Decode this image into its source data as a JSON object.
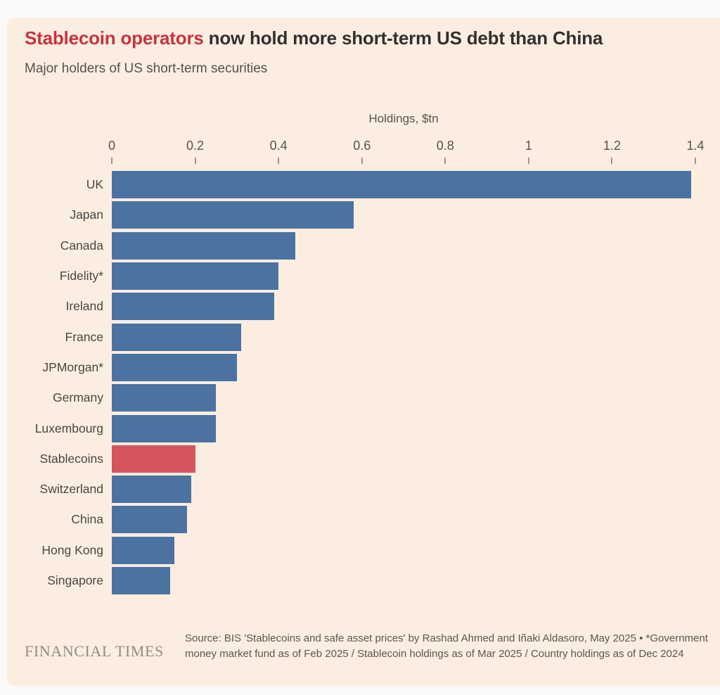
{
  "header": {
    "title_highlight": "Stablecoin operators",
    "title_rest": " now hold more short-term US debt than China",
    "subtitle": "Major holders of US short-term securities"
  },
  "chart_data": {
    "type": "bar",
    "orientation": "horizontal",
    "axis_title": "Holdings, $tn",
    "xlim": [
      0,
      1.4
    ],
    "tick_labels": [
      "0",
      "0.2",
      "0.4",
      "0.6",
      "0.8",
      "1",
      "1.2",
      "1.4"
    ],
    "tick_values": [
      0,
      0.2,
      0.4,
      0.6,
      0.8,
      1,
      1.2,
      1.4
    ],
    "grid": false,
    "legend": "none",
    "categories": [
      "UK",
      "Japan",
      "Canada",
      "Fidelity*",
      "Ireland",
      "France",
      "JPMorgan*",
      "Germany",
      "Luxembourg",
      "Stablecoins",
      "Switzerland",
      "China",
      "Hong Kong",
      "Singapore"
    ],
    "values": [
      1.39,
      0.58,
      0.44,
      0.4,
      0.39,
      0.31,
      0.3,
      0.25,
      0.25,
      0.2,
      0.19,
      0.18,
      0.15,
      0.14
    ],
    "highlight_category": "Stablecoins",
    "colors": {
      "bar": "#4C72A2",
      "highlight": "#D4555E",
      "title_highlight": "#C8333E",
      "background": "#FBEEE1"
    }
  },
  "footer": {
    "logo": "FINANCIAL TIMES",
    "source": "Source: BIS 'Stablecoins and safe asset prices' by Rashad Ahmed and Iñaki Aldasoro, May 2025 • *Government money market fund as of Feb 2025 / Stablecoin holdings as of Mar 2025 / Country holdings as of Dec 2024"
  }
}
